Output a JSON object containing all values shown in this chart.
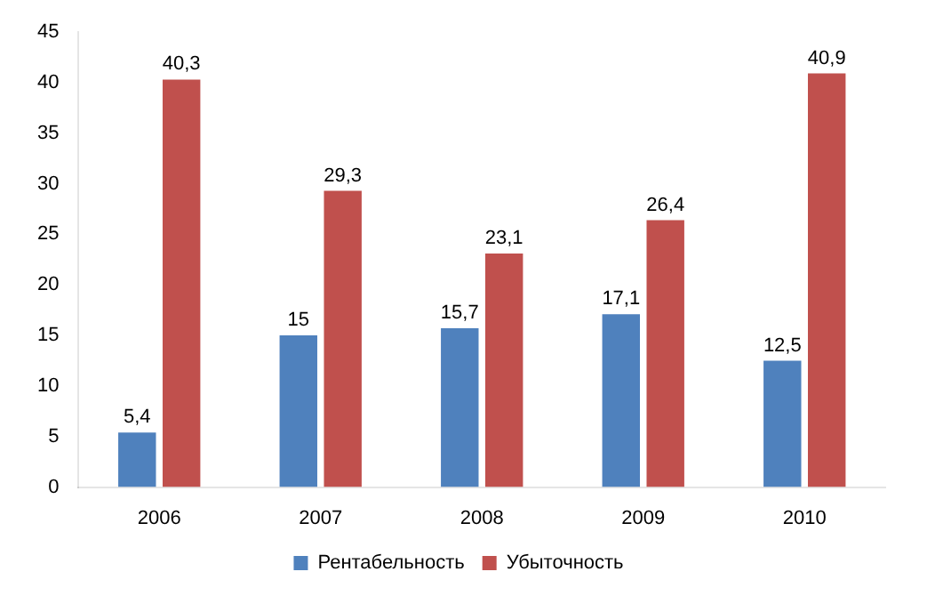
{
  "chart_data": {
    "type": "bar",
    "categories": [
      "2006",
      "2007",
      "2008",
      "2009",
      "2010"
    ],
    "series": [
      {
        "name": "Рентабельность",
        "color": "#4f81bd",
        "values": [
          5.4,
          15,
          15.7,
          17.1,
          12.5
        ],
        "value_labels": [
          "5,4",
          "15",
          "15,7",
          "17,1",
          "12,5"
        ]
      },
      {
        "name": "Убыточность",
        "color": "#c0504d",
        "values": [
          40.3,
          29.3,
          23.1,
          26.4,
          40.9
        ],
        "value_labels": [
          "40,3",
          "29,3",
          "23,1",
          "26,4",
          "40,9"
        ]
      }
    ],
    "ylim": [
      0,
      45
    ],
    "yticks": [
      0,
      5,
      10,
      15,
      20,
      25,
      30,
      35,
      40,
      45
    ],
    "legend": "bottom"
  }
}
